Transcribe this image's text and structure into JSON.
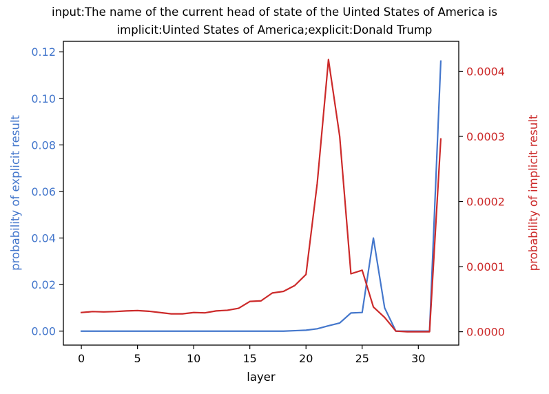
{
  "chart_data": {
    "type": "line",
    "title": "input:The name of the current head of state of the Uinted States of America is",
    "subtitle": "implicit:Uinted States of America;explicit:Donald Trump",
    "xlabel": "layer",
    "ylabel_left": "probability of explicit result",
    "ylabel_right": "probability of implicit result",
    "xlim": [
      -1.6,
      33.6
    ],
    "ylim_left": [
      -0.006,
      0.1245
    ],
    "ylim_right": [
      -2.05e-05,
      0.000446
    ],
    "x_ticks": [
      "0",
      "5",
      "10",
      "15",
      "20",
      "25",
      "30"
    ],
    "y_ticks_left": [
      "0.00",
      "0.02",
      "0.04",
      "0.06",
      "0.08",
      "0.10",
      "0.12"
    ],
    "y_ticks_right": [
      "0.0000",
      "0.0001",
      "0.0002",
      "0.0003",
      "0.0004"
    ],
    "x": [
      0,
      1,
      2,
      3,
      4,
      5,
      6,
      7,
      8,
      9,
      10,
      11,
      12,
      13,
      14,
      15,
      16,
      17,
      18,
      19,
      20,
      21,
      22,
      23,
      24,
      25,
      26,
      27,
      28,
      29,
      30,
      31,
      32
    ],
    "grid": false,
    "series": [
      {
        "name": "",
        "axis": "left",
        "color": "#4477cc",
        "values": [
          0,
          0,
          0,
          0,
          0,
          0,
          0,
          0,
          0,
          0,
          0,
          0,
          0,
          0,
          0,
          0,
          0,
          0,
          0,
          0.0002,
          0.0004,
          0.001,
          0.0023,
          0.0035,
          0.0078,
          0.008,
          0.04,
          0.01,
          0,
          0,
          0,
          0,
          0.116
        ]
      },
      {
        "name": "",
        "axis": "right",
        "color": "#cc2a2a",
        "values": [
          2.95e-05,
          3.1e-05,
          3.05e-05,
          3.1e-05,
          3.2e-05,
          3.25e-05,
          3.15e-05,
          2.95e-05,
          2.75e-05,
          2.75e-05,
          2.95e-05,
          2.9e-05,
          3.2e-05,
          3.3e-05,
          3.6e-05,
          4.65e-05,
          4.75e-05,
          5.95e-05,
          6.2e-05,
          7.1e-05,
          8.8e-05,
          0.000228,
          0.000418,
          0.0003,
          8.9e-05,
          9.45e-05,
          3.8e-05,
          2.2e-05,
          1e-06,
          0,
          0,
          0,
          0.000296
        ]
      }
    ]
  }
}
